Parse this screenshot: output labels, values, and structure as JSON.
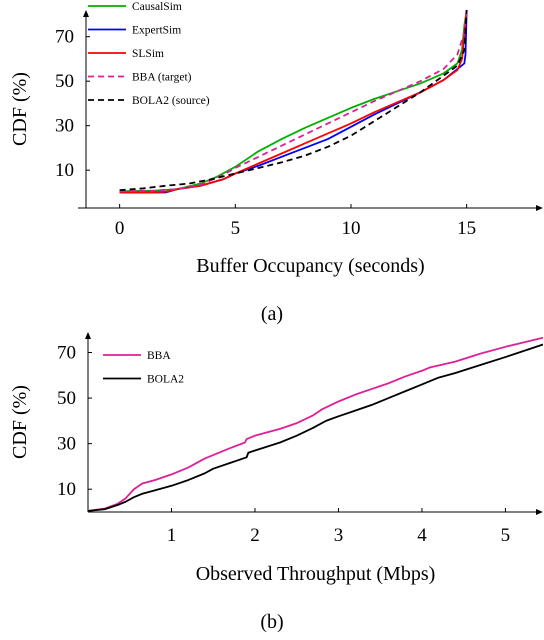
{
  "chart_data": [
    {
      "type": "line",
      "caption": "(a)",
      "xlabel": "Buffer Occupancy (seconds)",
      "ylabel": "CDF (%)",
      "xlim": [
        -1.8,
        18.3
      ],
      "ylim": [
        -7,
        82
      ],
      "xticks": [
        0,
        5,
        10,
        15
      ],
      "yticks": [
        10,
        30,
        50,
        70
      ],
      "grid": false,
      "legend_position": "top-left",
      "series": [
        {
          "name": "CausalSim",
          "color": "#00b000",
          "dash": "solid",
          "points": [
            [
              0,
              0.5
            ],
            [
              1.5,
              0.8
            ],
            [
              2.5,
              1.5
            ],
            [
              3.5,
              4
            ],
            [
              4.2,
              7
            ],
            [
              5,
              11.5
            ],
            [
              5.5,
              15
            ],
            [
              6,
              18.5
            ],
            [
              7,
              24
            ],
            [
              8,
              29
            ],
            [
              9,
              33.5
            ],
            [
              10,
              38
            ],
            [
              11,
              42
            ],
            [
              12,
              45.5
            ],
            [
              13,
              49
            ],
            [
              14,
              53.5
            ],
            [
              14.6,
              58
            ],
            [
              14.8,
              64
            ],
            [
              14.9,
              75
            ],
            [
              15,
              82
            ]
          ]
        },
        {
          "name": "ExpertSim",
          "color": "#0000ff",
          "dash": "solid",
          "points": [
            [
              0,
              0
            ],
            [
              1,
              0
            ],
            [
              2,
              0
            ],
            [
              2.5,
              1.5
            ],
            [
              3.5,
              3
            ],
            [
              4.5,
              6
            ],
            [
              5,
              8.5
            ],
            [
              6,
              12
            ],
            [
              7,
              16
            ],
            [
              8,
              20
            ],
            [
              9,
              24
            ],
            [
              10,
              29.5
            ],
            [
              11,
              35
            ],
            [
              12,
              40
            ],
            [
              13,
              45
            ],
            [
              14,
              50.5
            ],
            [
              14.9,
              58
            ],
            [
              14.95,
              62
            ],
            [
              15,
              82
            ]
          ]
        },
        {
          "name": "SLSim",
          "color": "#ff0000",
          "dash": "solid",
          "points": [
            [
              0,
              0
            ],
            [
              1,
              0
            ],
            [
              2,
              0.3
            ],
            [
              2.5,
              1.5
            ],
            [
              3.5,
              3
            ],
            [
              4.5,
              6
            ],
            [
              5,
              8.5
            ],
            [
              6,
              13
            ],
            [
              7,
              17.5
            ],
            [
              8,
              22
            ],
            [
              9,
              26.5
            ],
            [
              10,
              31
            ],
            [
              11,
              36
            ],
            [
              12,
              40.5
            ],
            [
              13,
              45
            ],
            [
              14,
              50.5
            ],
            [
              14.6,
              55
            ],
            [
              14.8,
              60
            ],
            [
              15,
              82
            ]
          ]
        },
        {
          "name": "BBA (target)",
          "color": "#dd1f9a",
          "dash": "dashed",
          "points": [
            [
              0,
              0.5
            ],
            [
              1.5,
              0.8
            ],
            [
              2.5,
              1.5
            ],
            [
              3.5,
              3.5
            ],
            [
              4.5,
              8
            ],
            [
              5,
              11
            ],
            [
              6,
              16
            ],
            [
              7,
              21
            ],
            [
              8,
              26
            ],
            [
              9,
              31
            ],
            [
              10,
              36
            ],
            [
              11,
              41
            ],
            [
              12,
              45.5
            ],
            [
              13,
              50
            ],
            [
              14,
              55.5
            ],
            [
              14.6,
              62
            ],
            [
              14.9,
              72
            ],
            [
              15,
              82
            ]
          ]
        },
        {
          "name": "BOLA2 (source)",
          "color": "#000000",
          "dash": "dashed",
          "points": [
            [
              0,
              1
            ],
            [
              1,
              1.8
            ],
            [
              2,
              3
            ],
            [
              3,
              4
            ],
            [
              4,
              6
            ],
            [
              5,
              8.5
            ],
            [
              6,
              11
            ],
            [
              7,
              13.5
            ],
            [
              8,
              16.5
            ],
            [
              9,
              20.5
            ],
            [
              10,
              25.5
            ],
            [
              11,
              32
            ],
            [
              12,
              38.5
            ],
            [
              13,
              45
            ],
            [
              14,
              52.5
            ],
            [
              14.6,
              57
            ],
            [
              14.9,
              64
            ],
            [
              15,
              82
            ]
          ]
        }
      ]
    },
    {
      "type": "line",
      "caption": "(b)",
      "xlabel": "Observed Throughput (Mbps)",
      "ylabel": "CDF (%)",
      "xlim": [
        0,
        5.45
      ],
      "ylim": [
        0,
        79
      ],
      "xticks": [
        1,
        2,
        3,
        4,
        5
      ],
      "yticks": [
        10,
        30,
        50,
        70
      ],
      "grid": false,
      "legend_position": "top-left",
      "series": [
        {
          "name": "BBA",
          "color": "#dd1f9a",
          "dash": "solid",
          "points": [
            [
              0,
              0.5
            ],
            [
              0.2,
              1.5
            ],
            [
              0.35,
              3.5
            ],
            [
              0.45,
              6
            ],
            [
              0.55,
              10
            ],
            [
              0.65,
              12.5
            ],
            [
              0.8,
              14
            ],
            [
              1,
              16.5
            ],
            [
              1.2,
              19.5
            ],
            [
              1.4,
              23.5
            ],
            [
              1.5,
              25
            ],
            [
              1.7,
              28
            ],
            [
              1.88,
              30.5
            ],
            [
              1.9,
              32
            ],
            [
              2,
              33.5
            ],
            [
              2.3,
              36.5
            ],
            [
              2.5,
              39
            ],
            [
              2.7,
              42.5
            ],
            [
              2.8,
              45
            ],
            [
              3,
              48.5
            ],
            [
              3.2,
              51.5
            ],
            [
              3.4,
              54
            ],
            [
              3.6,
              56.5
            ],
            [
              3.8,
              59.5
            ],
            [
              4,
              62
            ],
            [
              4.1,
              63.5
            ],
            [
              4.4,
              66
            ],
            [
              4.7,
              69.5
            ],
            [
              5,
              72.5
            ],
            [
              5.45,
              76.5
            ]
          ]
        },
        {
          "name": "BOLA2",
          "color": "#000000",
          "dash": "solid",
          "points": [
            [
              0,
              0.5
            ],
            [
              0.2,
              1.2
            ],
            [
              0.35,
              3
            ],
            [
              0.45,
              4.5
            ],
            [
              0.55,
              6.5
            ],
            [
              0.65,
              8
            ],
            [
              0.8,
              9.5
            ],
            [
              1,
              11.5
            ],
            [
              1.2,
              14
            ],
            [
              1.4,
              17
            ],
            [
              1.5,
              19
            ],
            [
              1.7,
              21.5
            ],
            [
              1.9,
              24
            ],
            [
              1.92,
              26
            ],
            [
              2,
              27
            ],
            [
              2.3,
              30.5
            ],
            [
              2.5,
              33.5
            ],
            [
              2.7,
              37
            ],
            [
              2.85,
              40
            ],
            [
              3,
              42
            ],
            [
              3.2,
              44.5
            ],
            [
              3.4,
              47
            ],
            [
              3.6,
              50
            ],
            [
              3.8,
              53
            ],
            [
              4,
              56
            ],
            [
              4.2,
              59
            ],
            [
              4.4,
              61
            ],
            [
              4.7,
              64.5
            ],
            [
              5,
              68
            ],
            [
              5.45,
              73.5
            ]
          ]
        }
      ]
    }
  ]
}
